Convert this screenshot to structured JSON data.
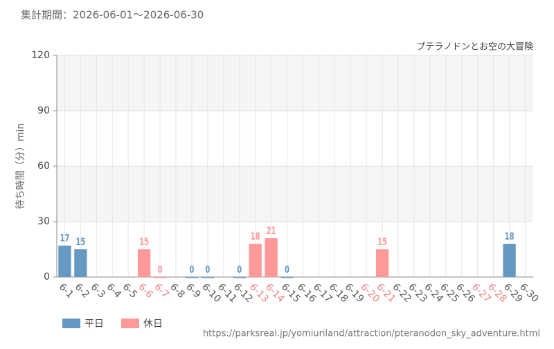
{
  "chart_data": {
    "type": "bar",
    "title": "集計期間：2026-06-01～2026-06-30",
    "subtitle": "プテラノドンとお空の大冒険",
    "y_label": "待ち時間（分）min",
    "source": "https://parksreal.jp/yomiuriland/attraction/pteranodon_sky_adventure.html",
    "categories": [
      "6-1",
      "6-2",
      "6-3",
      "6-4",
      "6-5",
      "6-6",
      "6-7",
      "6-8",
      "6-9",
      "6-10",
      "6-11",
      "6-12",
      "6-13",
      "6-14",
      "6-15",
      "6-16",
      "6-17",
      "6-18",
      "6-19",
      "6-20",
      "6-21",
      "6-22",
      "6-23",
      "6-24",
      "6-25",
      "6-26",
      "6-27",
      "6-28",
      "6-29",
      "6-30"
    ],
    "category_colors": [
      "#555",
      "#555",
      "#555",
      "#555",
      "#555",
      "#f08080",
      "#f08080",
      "#555",
      "#555",
      "#555",
      "#555",
      "#555",
      "#f08080",
      "#f08080",
      "#555",
      "#555",
      "#555",
      "#555",
      "#555",
      "#f08080",
      "#f08080",
      "#555",
      "#555",
      "#555",
      "#555",
      "#555",
      "#f08080",
      "#f08080",
      "#555",
      "#555"
    ],
    "series": [
      {
        "name": "平日",
        "color": "#6699c2",
        "values": [
          17,
          15,
          null,
          null,
          null,
          null,
          null,
          null,
          0,
          0,
          null,
          0,
          null,
          null,
          0,
          null,
          null,
          null,
          null,
          null,
          null,
          null,
          null,
          null,
          null,
          null,
          null,
          null,
          18,
          null
        ]
      },
      {
        "name": "休日",
        "color": "#ff9999",
        "values": [
          null,
          null,
          null,
          null,
          null,
          15,
          0,
          null,
          null,
          null,
          null,
          null,
          18,
          21,
          null,
          null,
          null,
          null,
          null,
          null,
          15,
          null,
          null,
          null,
          null,
          null,
          null,
          null,
          null,
          null
        ]
      }
    ],
    "ylim": [
      0,
      120
    ],
    "yticks": [
      0,
      30,
      60,
      90,
      120
    ],
    "grid": true
  }
}
